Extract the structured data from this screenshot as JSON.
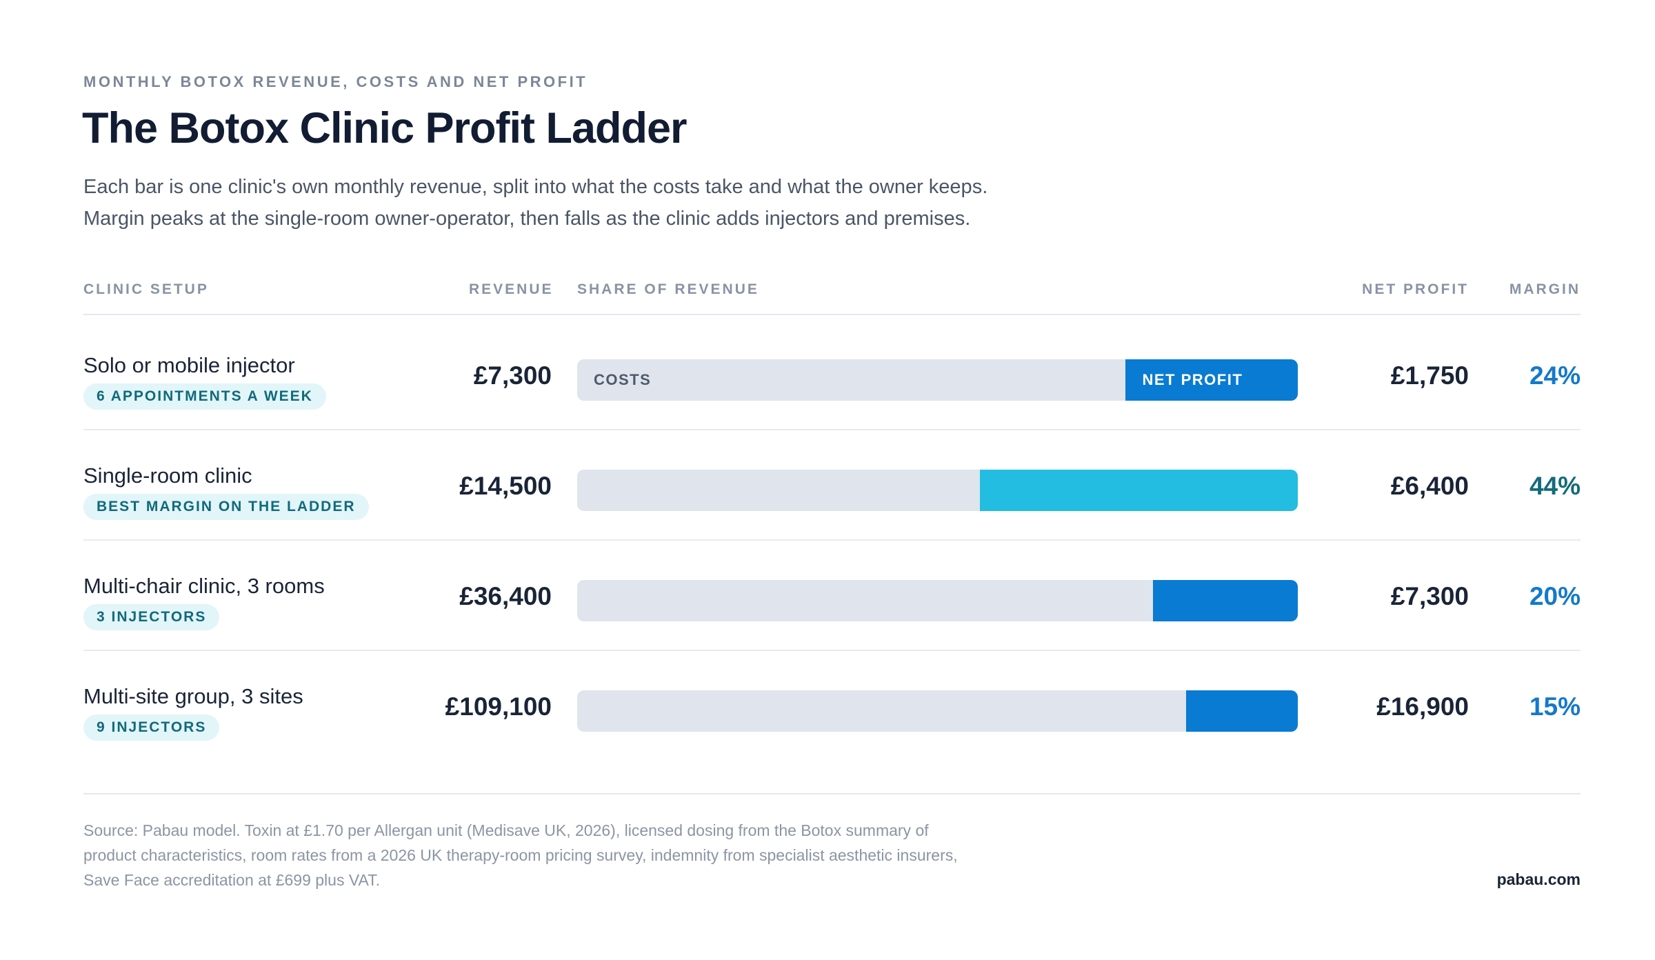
{
  "header": {
    "eyebrow": "MONTHLY BOTOX REVENUE, COSTS AND NET PROFIT",
    "title": "The Botox Clinic Profit Ladder",
    "subtitle_lines": [
      "Each bar is one clinic's own monthly revenue, split into what the costs take and what the owner keeps.",
      "Margin peaks at the single-room owner-operator, then falls as the clinic adds injectors and premises."
    ]
  },
  "columns": {
    "setup": "CLINIC SETUP",
    "revenue": "REVENUE",
    "share": "SHARE OF REVENUE",
    "net_profit": "NET PROFIT",
    "margin": "MARGIN"
  },
  "segment_labels": {
    "costs": "COSTS",
    "net_profit": "NET PROFIT"
  },
  "chart_data": {
    "type": "bar",
    "orientation": "horizontal",
    "stacked": true,
    "normalized": true,
    "categories": [
      "Solo or mobile injector",
      "Single-room clinic",
      "Multi-chair clinic, 3 rooms",
      "Multi-site group, 3 sites"
    ],
    "badges": [
      "6 APPOINTMENTS A WEEK",
      "BEST MARGIN ON THE LADDER",
      "3 INJECTORS",
      "9 INJECTORS"
    ],
    "revenue": [
      7300,
      14500,
      36400,
      109100
    ],
    "net_profit": [
      1750,
      6400,
      7300,
      16900
    ],
    "margin_pct": [
      24,
      44,
      20,
      15
    ],
    "revenue_labels": [
      "£7,300",
      "£14,500",
      "£36,400",
      "£109,100"
    ],
    "net_profit_labels": [
      "£1,750",
      "£6,400",
      "£7,300",
      "£16,900"
    ],
    "margin_labels": [
      "24%",
      "44%",
      "20%",
      "15%"
    ],
    "series": [
      {
        "name": "COSTS",
        "color": "#dfe4ed"
      },
      {
        "name": "NET PROFIT",
        "color": "#0a7bd2"
      }
    ],
    "net_colors": [
      "#0a7bd2",
      "#22bde0",
      "#0a7bd2",
      "#0a7bd2"
    ],
    "margin_colors": [
      "#1479c9",
      "#136b7b",
      "#1479c9",
      "#1479c9"
    ],
    "labeled_row": 0
  },
  "footer": {
    "source_lines": [
      "Source: Pabau model. Toxin at £1.70 per Allergan unit (Medisave UK, 2026), licensed dosing from the Botox summary of",
      "product characteristics, room rates from a 2026 UK therapy-room pricing survey, indemnity from specialist aesthetic insurers,",
      "Save Face accreditation at £699 plus VAT."
    ],
    "brand": "pabau.com"
  }
}
